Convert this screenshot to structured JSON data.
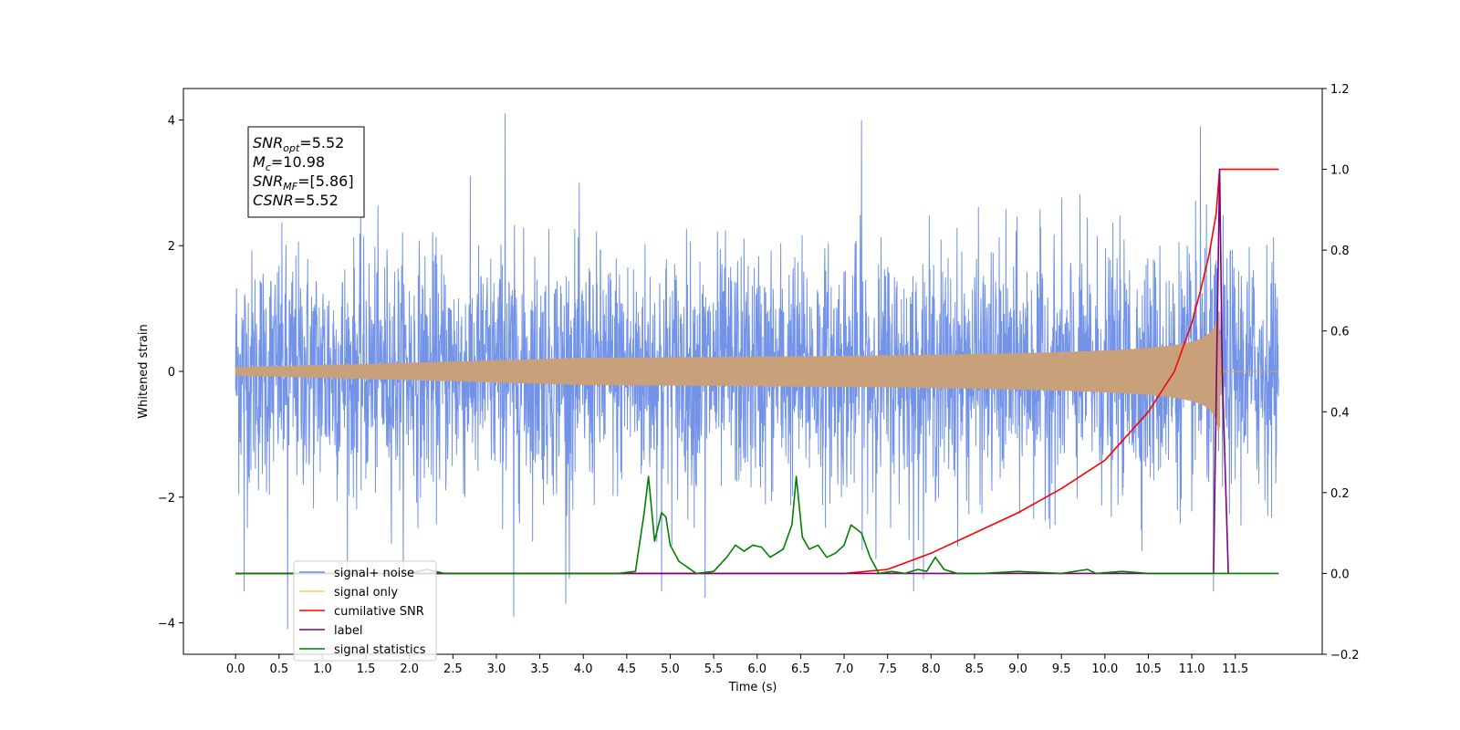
{
  "chart_data": {
    "type": "line",
    "title": "",
    "xlabel": "Time (s)",
    "ylabel": "Whitened strain",
    "xlim": [
      -0.6,
      12.5
    ],
    "ylim": [
      -4.5,
      4.5
    ],
    "y2lim": [
      -0.2,
      1.2
    ],
    "x_ticks": [
      "0.0",
      "0.5",
      "1.0",
      "1.5",
      "2.0",
      "2.5",
      "3.0",
      "3.5",
      "4.0",
      "4.5",
      "5.0",
      "5.5",
      "6.0",
      "6.5",
      "7.0",
      "7.5",
      "8.0",
      "8.5",
      "9.0",
      "9.5",
      "10.0",
      "10.5",
      "11.0",
      "11.5"
    ],
    "y_ticks": [
      "−4",
      "−2",
      "0",
      "2",
      "4"
    ],
    "y2_ticks": [
      "−0.2",
      "0.0",
      "0.2",
      "0.4",
      "0.6",
      "0.8",
      "1.0",
      "1.2"
    ],
    "grid": false,
    "annotation": {
      "lines": [
        {
          "var": "SNR",
          "sub": "opt",
          "value": "=5.52"
        },
        {
          "var": "M",
          "sub": "c",
          "value": "=10.98"
        },
        {
          "var": "SNR",
          "sub": "MF",
          "value": "=[5.86]"
        },
        {
          "var": "CSNR",
          "sub": "",
          "value": "=5.52"
        }
      ]
    },
    "legend": {
      "position": "lower-left",
      "entries": [
        {
          "label": "signal+ noise",
          "color": "#6a8ae6"
        },
        {
          "label": "signal only",
          "color": "#ffc864"
        },
        {
          "label": "cumilative SNR",
          "color": "#ff0000"
        },
        {
          "label": "label",
          "color": "#800080"
        },
        {
          "label": "signal statistics",
          "color": "#008000"
        }
      ]
    },
    "series": [
      {
        "name": "signal+ noise",
        "axis": "left",
        "color": "#7293e8",
        "kind": "noise",
        "x_range": [
          0.0,
          12.0
        ],
        "envelope": 1.6,
        "extremes": [
          {
            "x": 0.1,
            "y": -3.5
          },
          {
            "x": 0.6,
            "y": -4.1
          },
          {
            "x": 3.1,
            "y": 4.1
          },
          {
            "x": 3.2,
            "y": -3.9
          },
          {
            "x": 3.8,
            "y": -3.7
          },
          {
            "x": 5.4,
            "y": -3.6
          },
          {
            "x": 4.9,
            "y": -3.5
          },
          {
            "x": 7.2,
            "y": 4.0
          },
          {
            "x": 11.1,
            "y": 3.9
          },
          {
            "x": 11.25,
            "y": -3.5
          },
          {
            "x": 7.8,
            "y": -3.5
          }
        ]
      },
      {
        "name": "signal only",
        "axis": "left",
        "color": "#c8a07a",
        "kind": "chirp",
        "x_range": [
          0.0,
          12.0
        ],
        "merger_time": 11.32,
        "peak_amplitude": 0.95
      },
      {
        "name": "cumilative SNR",
        "axis": "right",
        "color": "#ff0000",
        "x": [
          0.0,
          7.0,
          7.5,
          8.0,
          8.5,
          9.0,
          9.5,
          10.0,
          10.5,
          10.8,
          11.0,
          11.1,
          11.2,
          11.28,
          11.32,
          11.35,
          12.0
        ],
        "values": [
          0.0,
          0.0,
          0.01,
          0.05,
          0.1,
          0.15,
          0.21,
          0.28,
          0.4,
          0.5,
          0.62,
          0.7,
          0.79,
          0.89,
          1.0,
          1.0,
          1.0
        ]
      },
      {
        "name": "label",
        "axis": "right",
        "color": "#800080",
        "x": [
          0.0,
          11.25,
          11.32,
          11.35,
          11.42
        ],
        "values": [
          0.0,
          0.0,
          1.0,
          0.5,
          0.0
        ]
      },
      {
        "name": "signal statistics",
        "axis": "right",
        "color": "#008000",
        "x": [
          0.0,
          2.0,
          2.2,
          2.4,
          2.6,
          2.8,
          3.0,
          3.2,
          3.5,
          3.7,
          4.0,
          4.4,
          4.6,
          4.7,
          4.75,
          4.82,
          4.9,
          4.95,
          5.0,
          5.1,
          5.3,
          5.5,
          5.65,
          5.75,
          5.85,
          5.95,
          6.05,
          6.15,
          6.3,
          6.4,
          6.45,
          6.52,
          6.6,
          6.7,
          6.8,
          6.9,
          7.0,
          7.08,
          7.2,
          7.3,
          7.4,
          7.55,
          7.7,
          7.85,
          7.95,
          8.05,
          8.15,
          8.3,
          8.6,
          9.0,
          9.5,
          9.8,
          9.9,
          10.2,
          10.5,
          11.0,
          12.0
        ],
        "values": [
          0.0,
          0.0,
          0.01,
          0.0,
          0.0,
          0.0,
          0.0,
          0.0,
          0.0,
          0.0,
          0.0,
          0.0,
          0.005,
          0.15,
          0.24,
          0.08,
          0.15,
          0.14,
          0.07,
          0.03,
          0.0,
          0.005,
          0.04,
          0.07,
          0.055,
          0.07,
          0.065,
          0.04,
          0.06,
          0.12,
          0.24,
          0.09,
          0.06,
          0.07,
          0.04,
          0.05,
          0.07,
          0.12,
          0.1,
          0.04,
          0.0,
          0.005,
          0.0,
          0.01,
          0.005,
          0.04,
          0.01,
          0.0,
          0.0,
          0.005,
          0.0,
          0.01,
          0.0,
          0.005,
          0.0,
          0.0,
          0.0
        ]
      }
    ]
  }
}
